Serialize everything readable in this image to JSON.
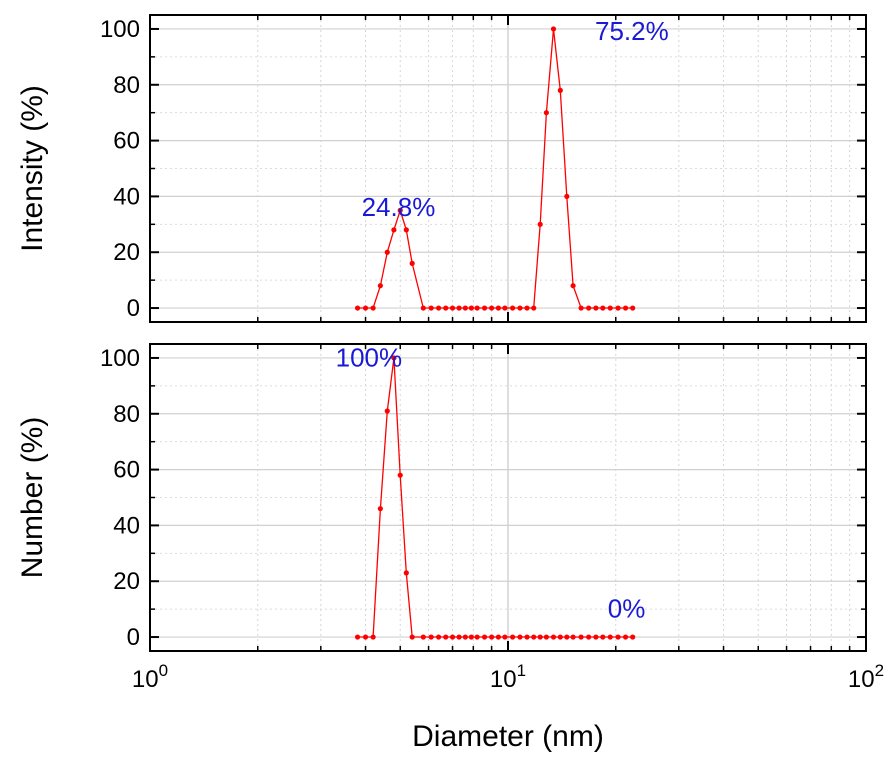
{
  "chart_data": [
    {
      "type": "line",
      "ylabel": "Intensity (%)",
      "xlabel": "",
      "xscale": "log",
      "xlim": [
        1,
        100
      ],
      "ylim": [
        -5,
        105
      ],
      "yticks": [
        0,
        20,
        40,
        60,
        80,
        100
      ],
      "grid": true,
      "series_color": "#ff0000",
      "series": [
        {
          "x": [
            3.8,
            4.0,
            4.2,
            4.4,
            4.6,
            4.8,
            5.0,
            5.2,
            5.4,
            5.8,
            6.1,
            6.4,
            6.7,
            7.0,
            7.3,
            7.6,
            7.9,
            8.2,
            8.6,
            9.0,
            9.4,
            9.8,
            10.3,
            10.8,
            11.3,
            11.8,
            12.3,
            12.8,
            13.4,
            14.0,
            14.6,
            15.2,
            16.0,
            16.8,
            17.6,
            18.4,
            19.3,
            20.3,
            21.3,
            22.3
          ],
          "y": [
            0,
            0,
            0,
            8,
            20,
            28,
            35,
            28,
            16,
            0,
            0,
            0,
            0,
            0,
            0,
            0,
            0,
            0,
            0,
            0,
            0,
            0,
            0,
            0,
            0,
            0,
            30,
            70,
            100,
            78,
            40,
            8,
            0,
            0,
            0,
            0,
            0,
            0,
            0,
            0
          ]
        }
      ],
      "annotations": [
        {
          "text": "24.8%",
          "x": 3.9,
          "y": 33
        },
        {
          "text": "75.2%",
          "x": 17.5,
          "y": 96
        }
      ],
      "annotation_color": "#1a1ad6"
    },
    {
      "type": "line",
      "ylabel": "Number (%)",
      "xlabel": "Diameter (nm)",
      "xscale": "log",
      "xlim": [
        1,
        100
      ],
      "ylim": [
        -5,
        105
      ],
      "yticks": [
        0,
        20,
        40,
        60,
        80,
        100
      ],
      "xticks": [
        {
          "value": 1,
          "base": "10",
          "exp": "0"
        },
        {
          "value": 10,
          "base": "10",
          "exp": "1"
        },
        {
          "value": 100,
          "base": "10",
          "exp": "2"
        }
      ],
      "grid": true,
      "series_color": "#ff0000",
      "series": [
        {
          "x": [
            3.8,
            4.0,
            4.2,
            4.4,
            4.6,
            4.8,
            5.0,
            5.2,
            5.4,
            5.8,
            6.1,
            6.4,
            6.7,
            7.0,
            7.3,
            7.6,
            7.9,
            8.2,
            8.6,
            9.0,
            9.4,
            9.8,
            10.3,
            10.8,
            11.3,
            11.8,
            12.3,
            12.8,
            13.4,
            14.0,
            14.6,
            15.2,
            16.0,
            16.8,
            17.6,
            18.4,
            19.3,
            20.3,
            21.3,
            22.3
          ],
          "y": [
            0,
            0,
            0,
            46,
            81,
            100,
            58,
            23,
            0,
            0,
            0,
            0,
            0,
            0,
            0,
            0,
            0,
            0,
            0,
            0,
            0,
            0,
            0,
            0,
            0,
            0,
            0,
            0,
            0,
            0,
            0,
            0,
            0,
            0,
            0,
            0,
            0,
            0,
            0,
            0
          ]
        }
      ],
      "annotations": [
        {
          "text": "100%",
          "x": 3.3,
          "y": 97
        },
        {
          "text": "0%",
          "x": 19.0,
          "y": 7
        }
      ],
      "annotation_color": "#1a1ad6"
    }
  ]
}
